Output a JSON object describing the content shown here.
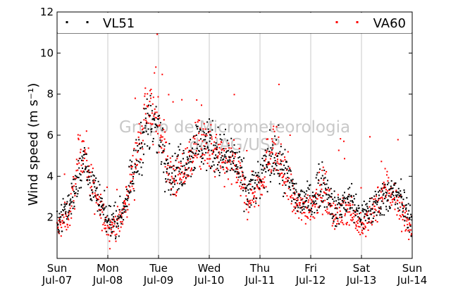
{
  "chart_data": {
    "type": "scatter",
    "title": "",
    "ylabel": "Wind speed (m s⁻¹)",
    "xlabel": "",
    "ylim": [
      0,
      12
    ],
    "xlim_days": [
      0,
      7
    ],
    "yticks": [
      2,
      4,
      6,
      8,
      10,
      12
    ],
    "xticks": [
      {
        "day": "Sun",
        "date": "Jul-07"
      },
      {
        "day": "Mon",
        "date": "Jul-08"
      },
      {
        "day": "Tue",
        "date": "Jul-09"
      },
      {
        "day": "Wed",
        "date": "Jul-10"
      },
      {
        "day": "Thu",
        "date": "Jul-11"
      },
      {
        "day": "Fri",
        "date": "Jul-12"
      },
      {
        "day": "Sat",
        "date": "Jul-13"
      },
      {
        "day": "Sun",
        "date": "Jul-14"
      }
    ],
    "grid": "vertical",
    "legend_position": "top",
    "watermark": [
      "Grupo de Micrometeorologia",
      "do IAG/USP"
    ],
    "series": [
      {
        "name": "VL51",
        "color": "#000000",
        "x_days": [
          0.0,
          0.25,
          0.5,
          0.75,
          1.0,
          1.25,
          1.5,
          1.75,
          2.0,
          2.25,
          2.5,
          2.75,
          3.0,
          3.25,
          3.5,
          3.75,
          4.0,
          4.25,
          4.5,
          4.75,
          5.0,
          5.25,
          5.5,
          5.75,
          6.0,
          6.25,
          6.5,
          6.75,
          7.0
        ],
        "values": [
          1.8,
          2.6,
          4.8,
          3.2,
          1.8,
          2.0,
          4.0,
          6.5,
          6.3,
          4.0,
          4.6,
          5.5,
          5.6,
          5.0,
          4.8,
          3.2,
          3.8,
          5.2,
          4.2,
          2.8,
          2.8,
          3.8,
          2.2,
          3.0,
          2.0,
          2.5,
          3.2,
          3.0,
          1.8
        ]
      },
      {
        "name": "VA60",
        "color": "#ff0000",
        "x_days": [
          0.0,
          0.25,
          0.5,
          0.75,
          1.0,
          1.25,
          1.5,
          1.75,
          2.0,
          2.25,
          2.5,
          2.75,
          3.0,
          3.25,
          3.5,
          3.75,
          4.0,
          4.25,
          4.5,
          4.75,
          5.0,
          5.25,
          5.5,
          5.75,
          6.0,
          6.25,
          6.5,
          6.75,
          7.0
        ],
        "values": [
          1.4,
          2.2,
          5.6,
          3.0,
          1.5,
          1.8,
          4.2,
          7.4,
          6.8,
          3.8,
          4.2,
          5.6,
          5.3,
          4.7,
          4.6,
          2.8,
          3.6,
          5.6,
          3.8,
          2.4,
          2.6,
          3.4,
          2.0,
          2.6,
          1.4,
          2.3,
          3.6,
          2.6,
          1.2
        ]
      }
    ]
  }
}
